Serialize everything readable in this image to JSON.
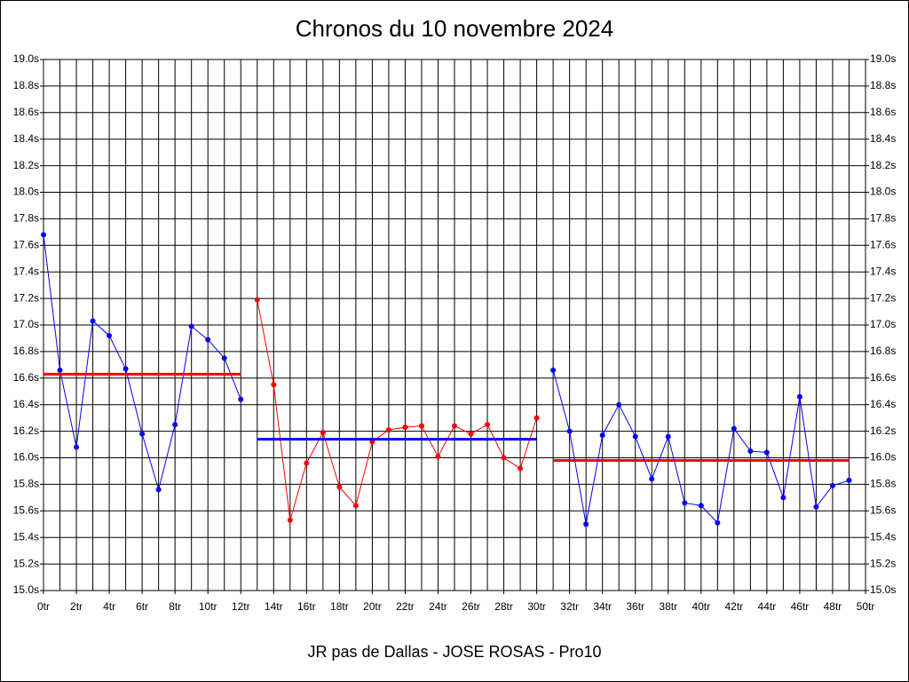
{
  "chart_data": {
    "type": "line",
    "title": "Chronos du 10 novembre 2024",
    "footer": "JR pas de Dallas - JOSE ROSAS - Pro10",
    "xlim": [
      0,
      50
    ],
    "xticks": [
      {
        "value": 0,
        "label": "0tr"
      },
      {
        "value": 2,
        "label": "2tr"
      },
      {
        "value": 4,
        "label": "4tr"
      },
      {
        "value": 6,
        "label": "6tr"
      },
      {
        "value": 8,
        "label": "8tr"
      },
      {
        "value": 10,
        "label": "10tr"
      },
      {
        "value": 12,
        "label": "12tr"
      },
      {
        "value": 14,
        "label": "14tr"
      },
      {
        "value": 16,
        "label": "16tr"
      },
      {
        "value": 18,
        "label": "18tr"
      },
      {
        "value": 20,
        "label": "20tr"
      },
      {
        "value": 22,
        "label": "22tr"
      },
      {
        "value": 24,
        "label": "24tr"
      },
      {
        "value": 26,
        "label": "26tr"
      },
      {
        "value": 28,
        "label": "28tr"
      },
      {
        "value": 30,
        "label": "30tr"
      },
      {
        "value": 32,
        "label": "32tr"
      },
      {
        "value": 34,
        "label": "34tr"
      },
      {
        "value": 36,
        "label": "36tr"
      },
      {
        "value": 38,
        "label": "38tr"
      },
      {
        "value": 40,
        "label": "40tr"
      },
      {
        "value": 42,
        "label": "42tr"
      },
      {
        "value": 44,
        "label": "44tr"
      },
      {
        "value": 46,
        "label": "46tr"
      },
      {
        "value": 48,
        "label": "48tr"
      },
      {
        "value": 50,
        "label": "50tr"
      }
    ],
    "xminorticks": [
      1,
      3,
      5,
      7,
      9,
      11,
      13,
      15,
      17,
      19,
      21,
      23,
      25,
      27,
      29,
      31,
      33,
      35,
      37,
      39,
      41,
      43,
      45,
      47,
      49
    ],
    "ylim": [
      15.0,
      19.0
    ],
    "yticks": [
      {
        "value": 15.0,
        "label": "15.0s"
      },
      {
        "value": 15.2,
        "label": "15.2s"
      },
      {
        "value": 15.4,
        "label": "15.4s"
      },
      {
        "value": 15.6,
        "label": "15.6s"
      },
      {
        "value": 15.8,
        "label": "15.8s"
      },
      {
        "value": 16.0,
        "label": "16.0s"
      },
      {
        "value": 16.2,
        "label": "16.2s"
      },
      {
        "value": 16.4,
        "label": "16.4s"
      },
      {
        "value": 16.6,
        "label": "16.6s"
      },
      {
        "value": 16.8,
        "label": "16.8s"
      },
      {
        "value": 17.0,
        "label": "17.0s"
      },
      {
        "value": 17.2,
        "label": "17.2s"
      },
      {
        "value": 17.4,
        "label": "17.4s"
      },
      {
        "value": 17.6,
        "label": "17.6s"
      },
      {
        "value": 17.8,
        "label": "17.8s"
      },
      {
        "value": 18.0,
        "label": "18.0s"
      },
      {
        "value": 18.2,
        "label": "18.2s"
      },
      {
        "value": 18.4,
        "label": "18.4s"
      },
      {
        "value": 18.6,
        "label": "18.6s"
      },
      {
        "value": 18.8,
        "label": "18.8s"
      },
      {
        "value": 19.0,
        "label": "19.0s"
      }
    ],
    "grid": true,
    "series": [
      {
        "color": "#0000ff",
        "average": 16.63,
        "average_color": "#ff0000",
        "x": [
          0,
          1,
          2,
          3,
          4,
          5,
          6,
          7,
          8,
          9,
          10,
          11,
          12
        ],
        "values": [
          17.68,
          16.66,
          16.08,
          17.03,
          16.92,
          16.67,
          16.18,
          15.76,
          16.25,
          16.99,
          16.89,
          16.75,
          16.44
        ]
      },
      {
        "color": "#ff0000",
        "average": 16.14,
        "average_color": "#0000ff",
        "x": [
          13,
          14,
          15,
          16,
          17,
          18,
          19,
          20,
          21,
          22,
          23,
          24,
          25,
          26,
          27,
          28,
          29,
          30
        ],
        "values": [
          17.19,
          16.55,
          15.53,
          15.96,
          16.19,
          15.78,
          15.64,
          16.12,
          16.21,
          16.23,
          16.24,
          16.01,
          16.24,
          16.18,
          16.25,
          16.0,
          15.92,
          16.3
        ]
      },
      {
        "color": "#0000ff",
        "average": 15.98,
        "average_color": "#ff0000",
        "x": [
          31,
          32,
          33,
          34,
          35,
          36,
          37,
          38,
          39,
          40,
          41,
          42,
          43,
          44,
          45,
          46,
          47,
          48,
          49
        ],
        "values": [
          16.66,
          16.2,
          15.5,
          16.17,
          16.4,
          16.16,
          15.84,
          16.16,
          15.66,
          15.64,
          15.51,
          16.22,
          16.05,
          16.04,
          15.7,
          16.46,
          15.63,
          15.79,
          15.83
        ]
      }
    ]
  }
}
